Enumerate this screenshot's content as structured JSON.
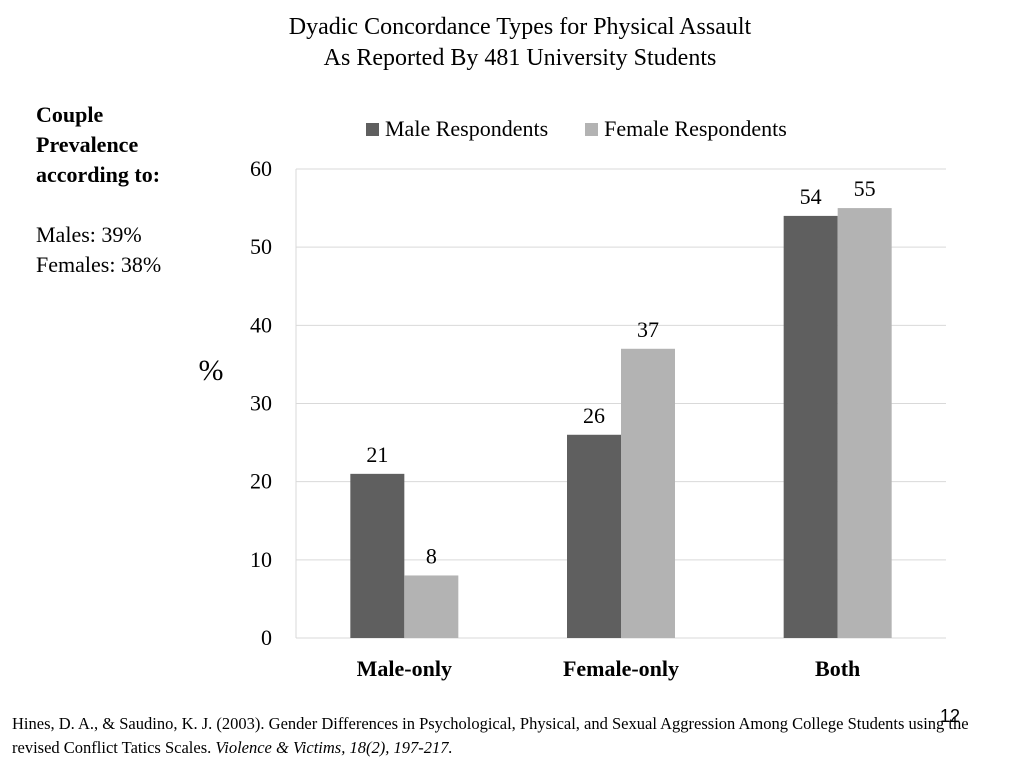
{
  "title": {
    "line1": "Dyadic Concordance Types for Physical Assault",
    "line2": "As Reported By 481 University Students"
  },
  "side_note": {
    "heading_line1": "Couple",
    "heading_line2": "Prevalence",
    "heading_line3": "according to:",
    "males": "Males: 39%",
    "females": "Females: 38%"
  },
  "chart_data": {
    "type": "bar",
    "title": "Dyadic Concordance Types for Physical Assault As Reported By 481 University Students",
    "ylabel": "%",
    "xlabel": "",
    "categories": [
      "Male-only",
      "Female-only",
      "Both"
    ],
    "series": [
      {
        "name": "Male Respondents",
        "values": [
          21,
          26,
          54
        ],
        "color": "#5f5f5f"
      },
      {
        "name": "Female Respondents",
        "values": [
          8,
          37,
          55
        ],
        "color": "#b3b3b3"
      }
    ],
    "ylim": [
      0,
      60
    ],
    "yticks": [
      "0",
      "10",
      "20",
      "30",
      "40",
      "50",
      "60"
    ],
    "data_labels": true,
    "grid": true,
    "legend": "top-center"
  },
  "citation": {
    "text": "Hines, D. A., & Saudino, K. J. (2003). Gender Differences in Psychological, Physical, and Sexual Aggression Among College Students using the revised Conflict Tatics Scales.",
    "journal": "Violence & Victims, 18(2), 197-217."
  },
  "page_number": "12"
}
